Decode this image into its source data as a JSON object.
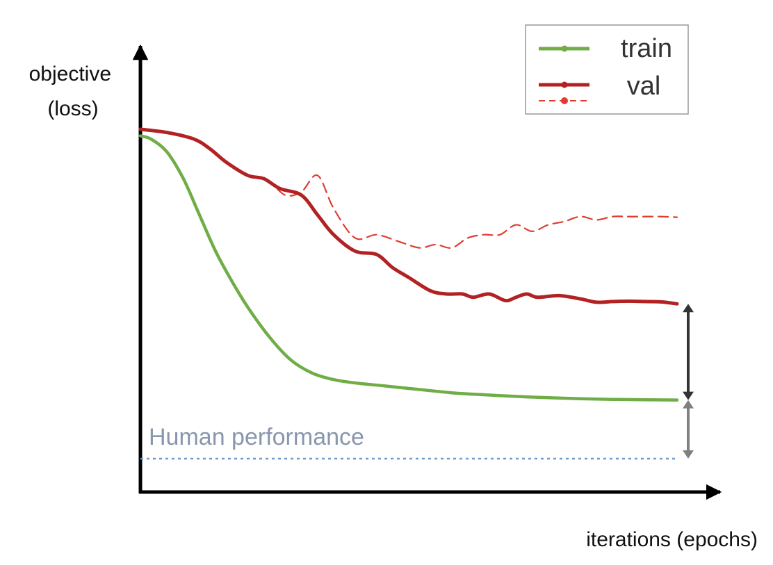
{
  "chart_data": {
    "type": "line",
    "xlabel": "iterations (epochs)",
    "ylabel_lines": [
      "objective",
      "(loss)"
    ],
    "xlim": [
      0,
      100
    ],
    "ylim": [
      0,
      100
    ],
    "grid": false,
    "legend": {
      "placement": "top-right",
      "entries": [
        "train",
        "val",
        ""
      ]
    },
    "series": [
      {
        "name": "train",
        "style": "solid",
        "color": "#70AD47",
        "x": [
          0,
          2,
          5,
          8,
          11,
          14,
          17,
          20,
          24,
          28,
          32,
          36,
          40,
          46,
          52,
          58,
          64,
          70,
          76,
          82,
          88,
          94,
          100
        ],
        "y": [
          98,
          97,
          93,
          85,
          74,
          63,
          54,
          46,
          37,
          30,
          26,
          24,
          23,
          22,
          21,
          20,
          19.4,
          18.9,
          18.5,
          18.2,
          18.0,
          17.9,
          17.8
        ]
      },
      {
        "name": "val",
        "style": "solid",
        "color": "#B22222",
        "x": [
          0,
          5,
          10,
          13,
          16,
          20,
          23,
          26,
          30,
          33,
          36,
          40,
          44,
          47,
          50,
          54,
          57,
          60,
          62,
          65,
          68,
          70,
          72,
          74,
          78,
          82,
          85,
          88,
          91,
          94,
          97,
          100
        ],
        "y": [
          100,
          99,
          97,
          94,
          90,
          86,
          85,
          82,
          80,
          74,
          68,
          63,
          62,
          58,
          55,
          51,
          50,
          50,
          49,
          50,
          48,
          49,
          50,
          49,
          49.5,
          48.5,
          47.5,
          47.7,
          47.8,
          47.7,
          47.6,
          47.0
        ]
      },
      {
        "name": "",
        "style": "dashed",
        "color": "#E03C31",
        "x": [
          0,
          5,
          10,
          13,
          17,
          20,
          24,
          27,
          30,
          33,
          36,
          40,
          44,
          48,
          52,
          55,
          58,
          61,
          64,
          67,
          70,
          73,
          76,
          79,
          82,
          85,
          88,
          91,
          94,
          97,
          100
        ],
        "y": [
          100,
          99,
          97,
          94,
          89,
          86,
          84,
          80,
          81,
          86,
          76,
          67,
          68,
          66,
          64,
          65,
          64,
          67,
          68,
          68,
          71,
          69,
          71,
          72,
          73.5,
          72.5,
          73.5,
          73.5,
          73.5,
          73.5,
          73.3
        ]
      }
    ],
    "reference_line": {
      "label": "Human performance",
      "y": 0,
      "style": "dotted",
      "color": "#6A9AD0",
      "label_color": "#8896AE"
    },
    "annotations": [
      {
        "kind": "double-arrow",
        "x": 100,
        "y_from": 17.8,
        "y_to": 47.0,
        "color": "#333333"
      },
      {
        "kind": "double-arrow",
        "x": 100,
        "y_from": 0,
        "y_to": 17.8,
        "color": "#808080"
      }
    ]
  }
}
